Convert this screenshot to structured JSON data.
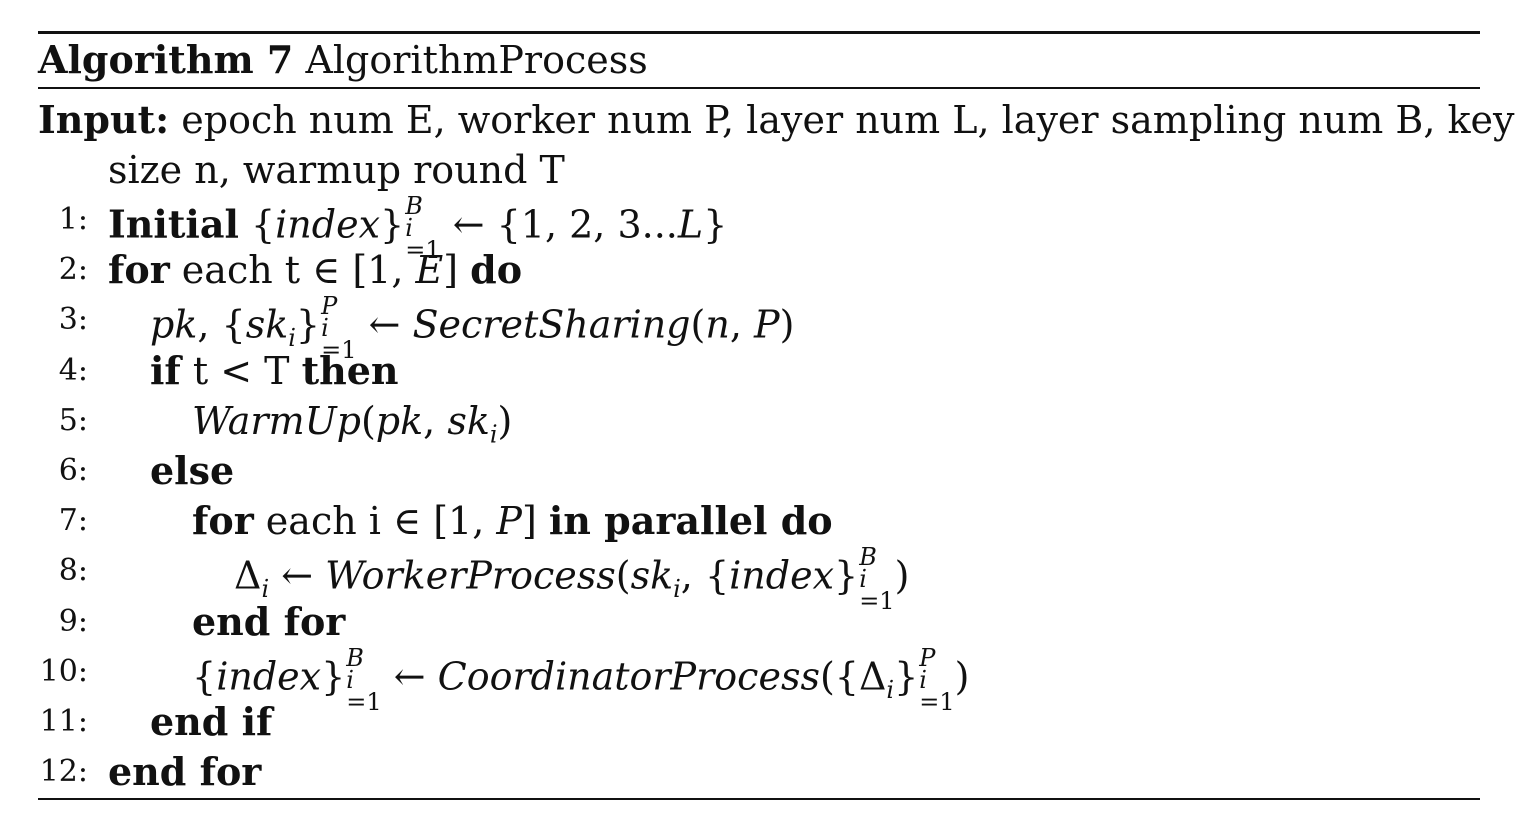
{
  "caption": {
    "label": "Algorithm 7",
    "title": "AlgorithmProcess"
  },
  "input": {
    "label": "Input:",
    "line1": "epoch num E, worker num P, layer num L, layer sampling num B, key",
    "line2": "size n, warmup round T"
  },
  "steps": [
    {
      "num": "1:",
      "text": "Initial {index}B i=1 ← {1, 2, 3...L}"
    },
    {
      "num": "2:",
      "text": "for each t ∈ [1, E] do"
    },
    {
      "num": "3:",
      "text": "pk, {ski}P i=1 ← SecretSharing(n, P)"
    },
    {
      "num": "4:",
      "text": "if t < T then"
    },
    {
      "num": "5:",
      "text": "WarmUp(pk, ski)"
    },
    {
      "num": "6:",
      "text": "else"
    },
    {
      "num": "7:",
      "text": "for each i ∈ [1, P] in parallel do"
    },
    {
      "num": "8:",
      "text": "Δi ← WorkerProcess(ski, {index}B i=1)"
    },
    {
      "num": "9:",
      "text": "end for"
    },
    {
      "num": "10:",
      "text": "{index}B i=1 ← CoordinatorProcess({Δi}P i=1)"
    },
    {
      "num": "11:",
      "text": "end if"
    },
    {
      "num": "12:",
      "text": "end for"
    }
  ]
}
